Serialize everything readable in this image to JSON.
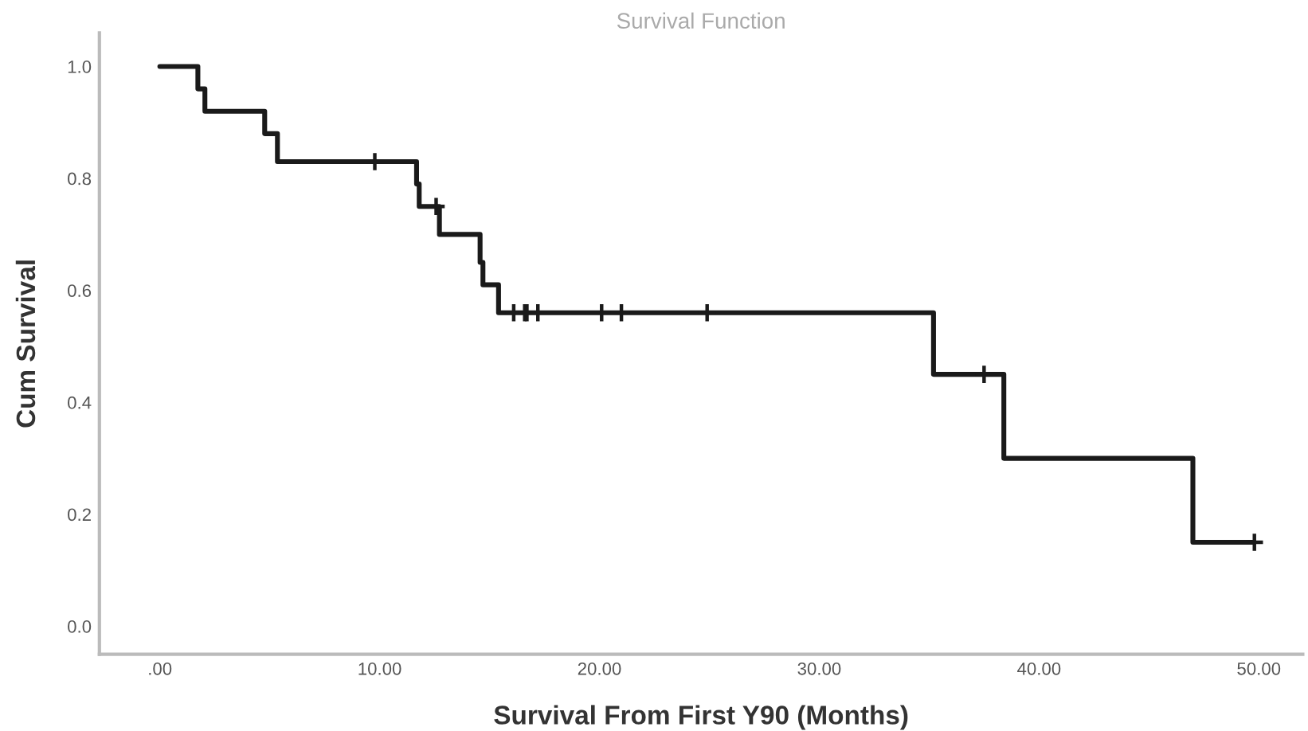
{
  "chart_data": {
    "type": "step",
    "title": "Survival Function",
    "xlabel": "Survival From First Y90 (Months)",
    "ylabel": "Cum Survival",
    "xlim": [
      -2.75,
      52
    ],
    "ylim": [
      -0.05,
      1.06
    ],
    "xticks": [
      {
        "value": 0,
        "label": ".00"
      },
      {
        "value": 10,
        "label": "10.00"
      },
      {
        "value": 20,
        "label": "20.00"
      },
      {
        "value": 30,
        "label": "30.00"
      },
      {
        "value": 40,
        "label": "40.00"
      },
      {
        "value": 50,
        "label": "50.00"
      }
    ],
    "yticks": [
      {
        "value": 0,
        "label": "0.0"
      },
      0.2,
      0.4,
      0.6,
      0.8,
      {
        "value": 1,
        "label": "1.0"
      }
    ],
    "grid": false,
    "series": [
      {
        "color": "#1a1a1a",
        "marker": "none",
        "x": [
          0,
          1.73,
          2.05,
          4.77,
          5.35,
          11.68,
          11.8,
          12.72,
          14.57,
          14.7,
          15.41,
          35.2,
          38.4,
          47.0,
          49.8
        ],
        "values": [
          1.0,
          0.96,
          0.92,
          0.88,
          0.83,
          0.79,
          0.75,
          0.7,
          0.65,
          0.61,
          0.56,
          0.45,
          0.3,
          0.15,
          0.15
        ]
      },
      {
        "type": "scatter",
        "color": "#1a1a1a",
        "marker": "cross",
        "x": [
          9.78,
          12.57,
          16.1,
          16.6,
          16.7,
          17.2,
          20.1,
          21.0,
          24.9,
          37.5,
          49.8
        ],
        "values": [
          0.83,
          0.75,
          0.56,
          0.56,
          0.56,
          0.56,
          0.56,
          0.56,
          0.56,
          0.45,
          0.15
        ]
      }
    ]
  }
}
